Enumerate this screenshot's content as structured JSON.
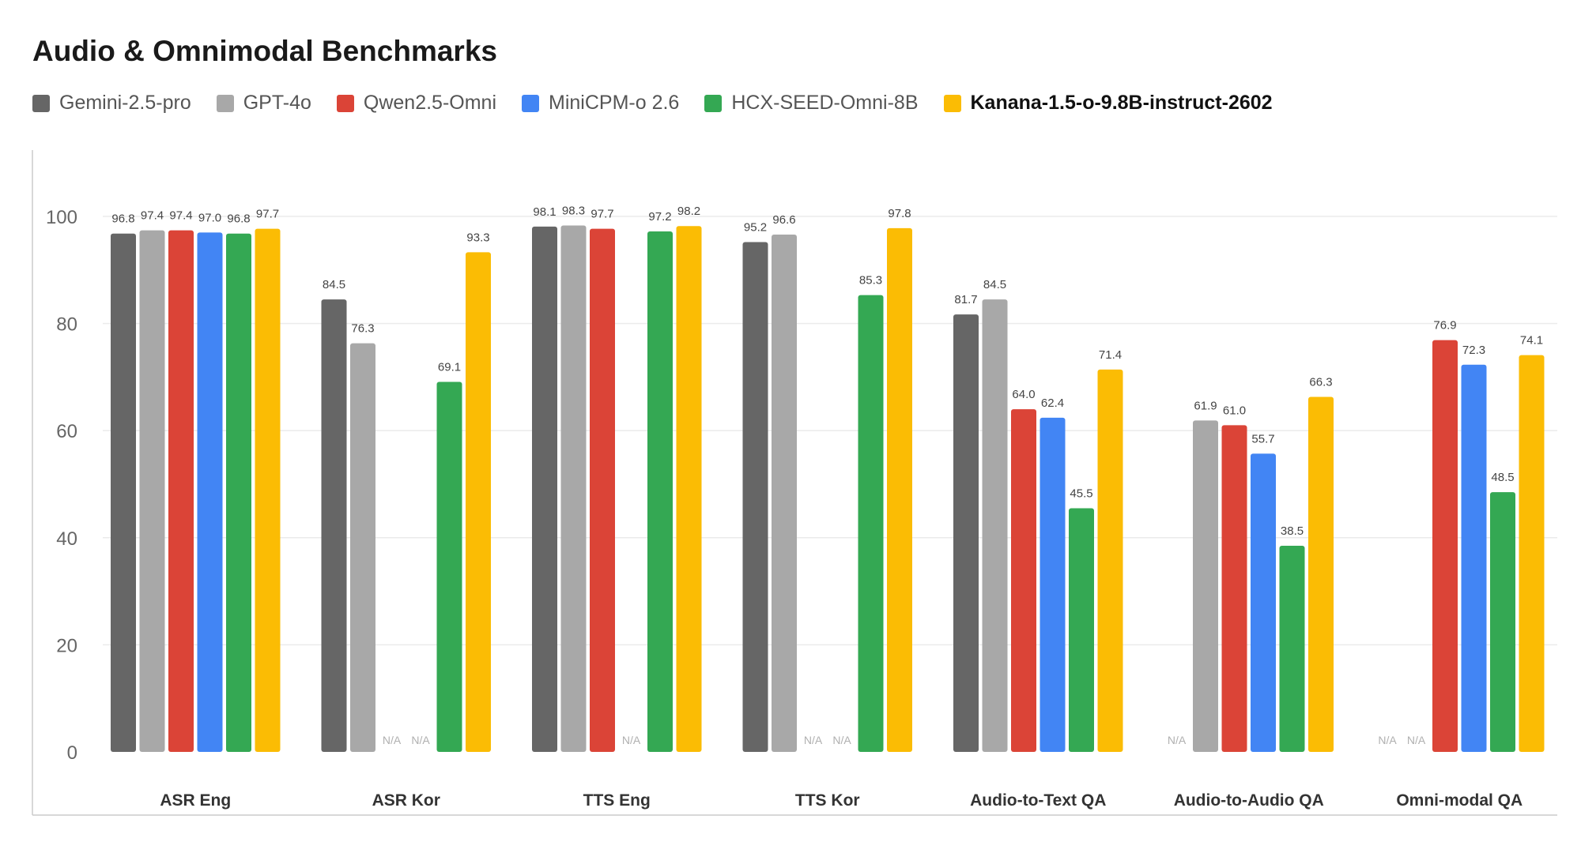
{
  "chart_data": {
    "type": "bar",
    "title": "Audio & Omnimodal Benchmarks",
    "xlabel": "",
    "ylabel": "",
    "ylim": [
      0,
      100
    ],
    "yticks": [
      0,
      20,
      40,
      60,
      80,
      100
    ],
    "grid": true,
    "legend_position": "top-left",
    "categories": [
      "ASR Eng",
      "ASR Kor",
      "TTS Eng",
      "TTS Kor",
      "Audio-to-Text QA",
      "Audio-to-Audio QA",
      "Omni-modal QA"
    ],
    "missing_label": "N/A",
    "series": [
      {
        "name": "Gemini-2.5-pro",
        "color": "#666666",
        "values": [
          96.8,
          84.5,
          98.1,
          95.2,
          81.7,
          null,
          null
        ]
      },
      {
        "name": "GPT-4o",
        "color": "#a8a8a8",
        "values": [
          97.4,
          76.3,
          98.3,
          96.6,
          84.5,
          61.9,
          null
        ]
      },
      {
        "name": "Qwen2.5-Omni",
        "color": "#db4437",
        "values": [
          97.4,
          null,
          97.7,
          null,
          64.0,
          61.0,
          76.9
        ]
      },
      {
        "name": "MiniCPM-o 2.6",
        "color": "#4285f4",
        "values": [
          97.0,
          null,
          null,
          null,
          62.4,
          55.7,
          72.3
        ]
      },
      {
        "name": "HCX-SEED-Omni-8B",
        "color": "#34a853",
        "values": [
          96.8,
          69.1,
          97.2,
          85.3,
          45.5,
          38.5,
          48.5
        ]
      },
      {
        "name": "Kanana-1.5-o-9.8B-instruct-2602",
        "color": "#fbbc04",
        "values": [
          97.7,
          93.3,
          98.2,
          97.8,
          71.4,
          66.3,
          74.1
        ],
        "highlight": true
      }
    ]
  }
}
